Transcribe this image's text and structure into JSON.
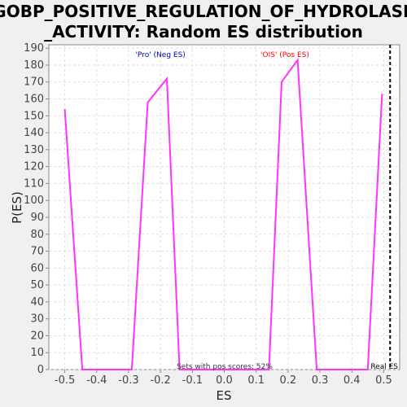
{
  "chart_data": {
    "type": "line",
    "title_line1": "GOBP_POSITIVE_REGULATION_OF_HYDROLASE",
    "title_line2": "_ACTIVITY: Random ES distribution",
    "xlabel": "ES",
    "ylabel": "P(ES)",
    "xlim": [
      -0.55,
      0.55
    ],
    "ylim": [
      0,
      192
    ],
    "x_ticks": [
      "-0.5",
      "-0.4",
      "-0.3",
      "-0.2",
      "-0.1",
      "0.0",
      "0.1",
      "0.2",
      "0.3",
      "0.4",
      "0.5"
    ],
    "x_tick_values": [
      -0.5,
      -0.4,
      -0.3,
      -0.2,
      -0.1,
      0.0,
      0.1,
      0.2,
      0.3,
      0.4,
      0.5
    ],
    "y_ticks": [
      0,
      10,
      20,
      30,
      40,
      50,
      60,
      70,
      80,
      90,
      100,
      110,
      120,
      130,
      140,
      150,
      160,
      170,
      180,
      190
    ],
    "grid": true,
    "series": [
      {
        "color": "#ff33ff",
        "x": [
          -0.5,
          -0.445,
          -0.29,
          -0.24,
          -0.18,
          -0.14,
          0.14,
          0.18,
          0.23,
          0.29,
          0.45,
          0.495
        ],
        "y": [
          154,
          0,
          0,
          158,
          172,
          0,
          0,
          170,
          183,
          0,
          0,
          163
        ]
      }
    ],
    "real_es": 0.52,
    "annotations": {
      "neg": "'Pro' (Neg ES)",
      "pos": "'OIS' (Pos ES)",
      "pos_scores": "Sets with pos scores: 52%",
      "real_es": "Real ES"
    },
    "colors": {
      "neg": "#0000cc",
      "pos": "#ff0000",
      "line": "#ff33ff",
      "real_es": "#000000"
    }
  }
}
